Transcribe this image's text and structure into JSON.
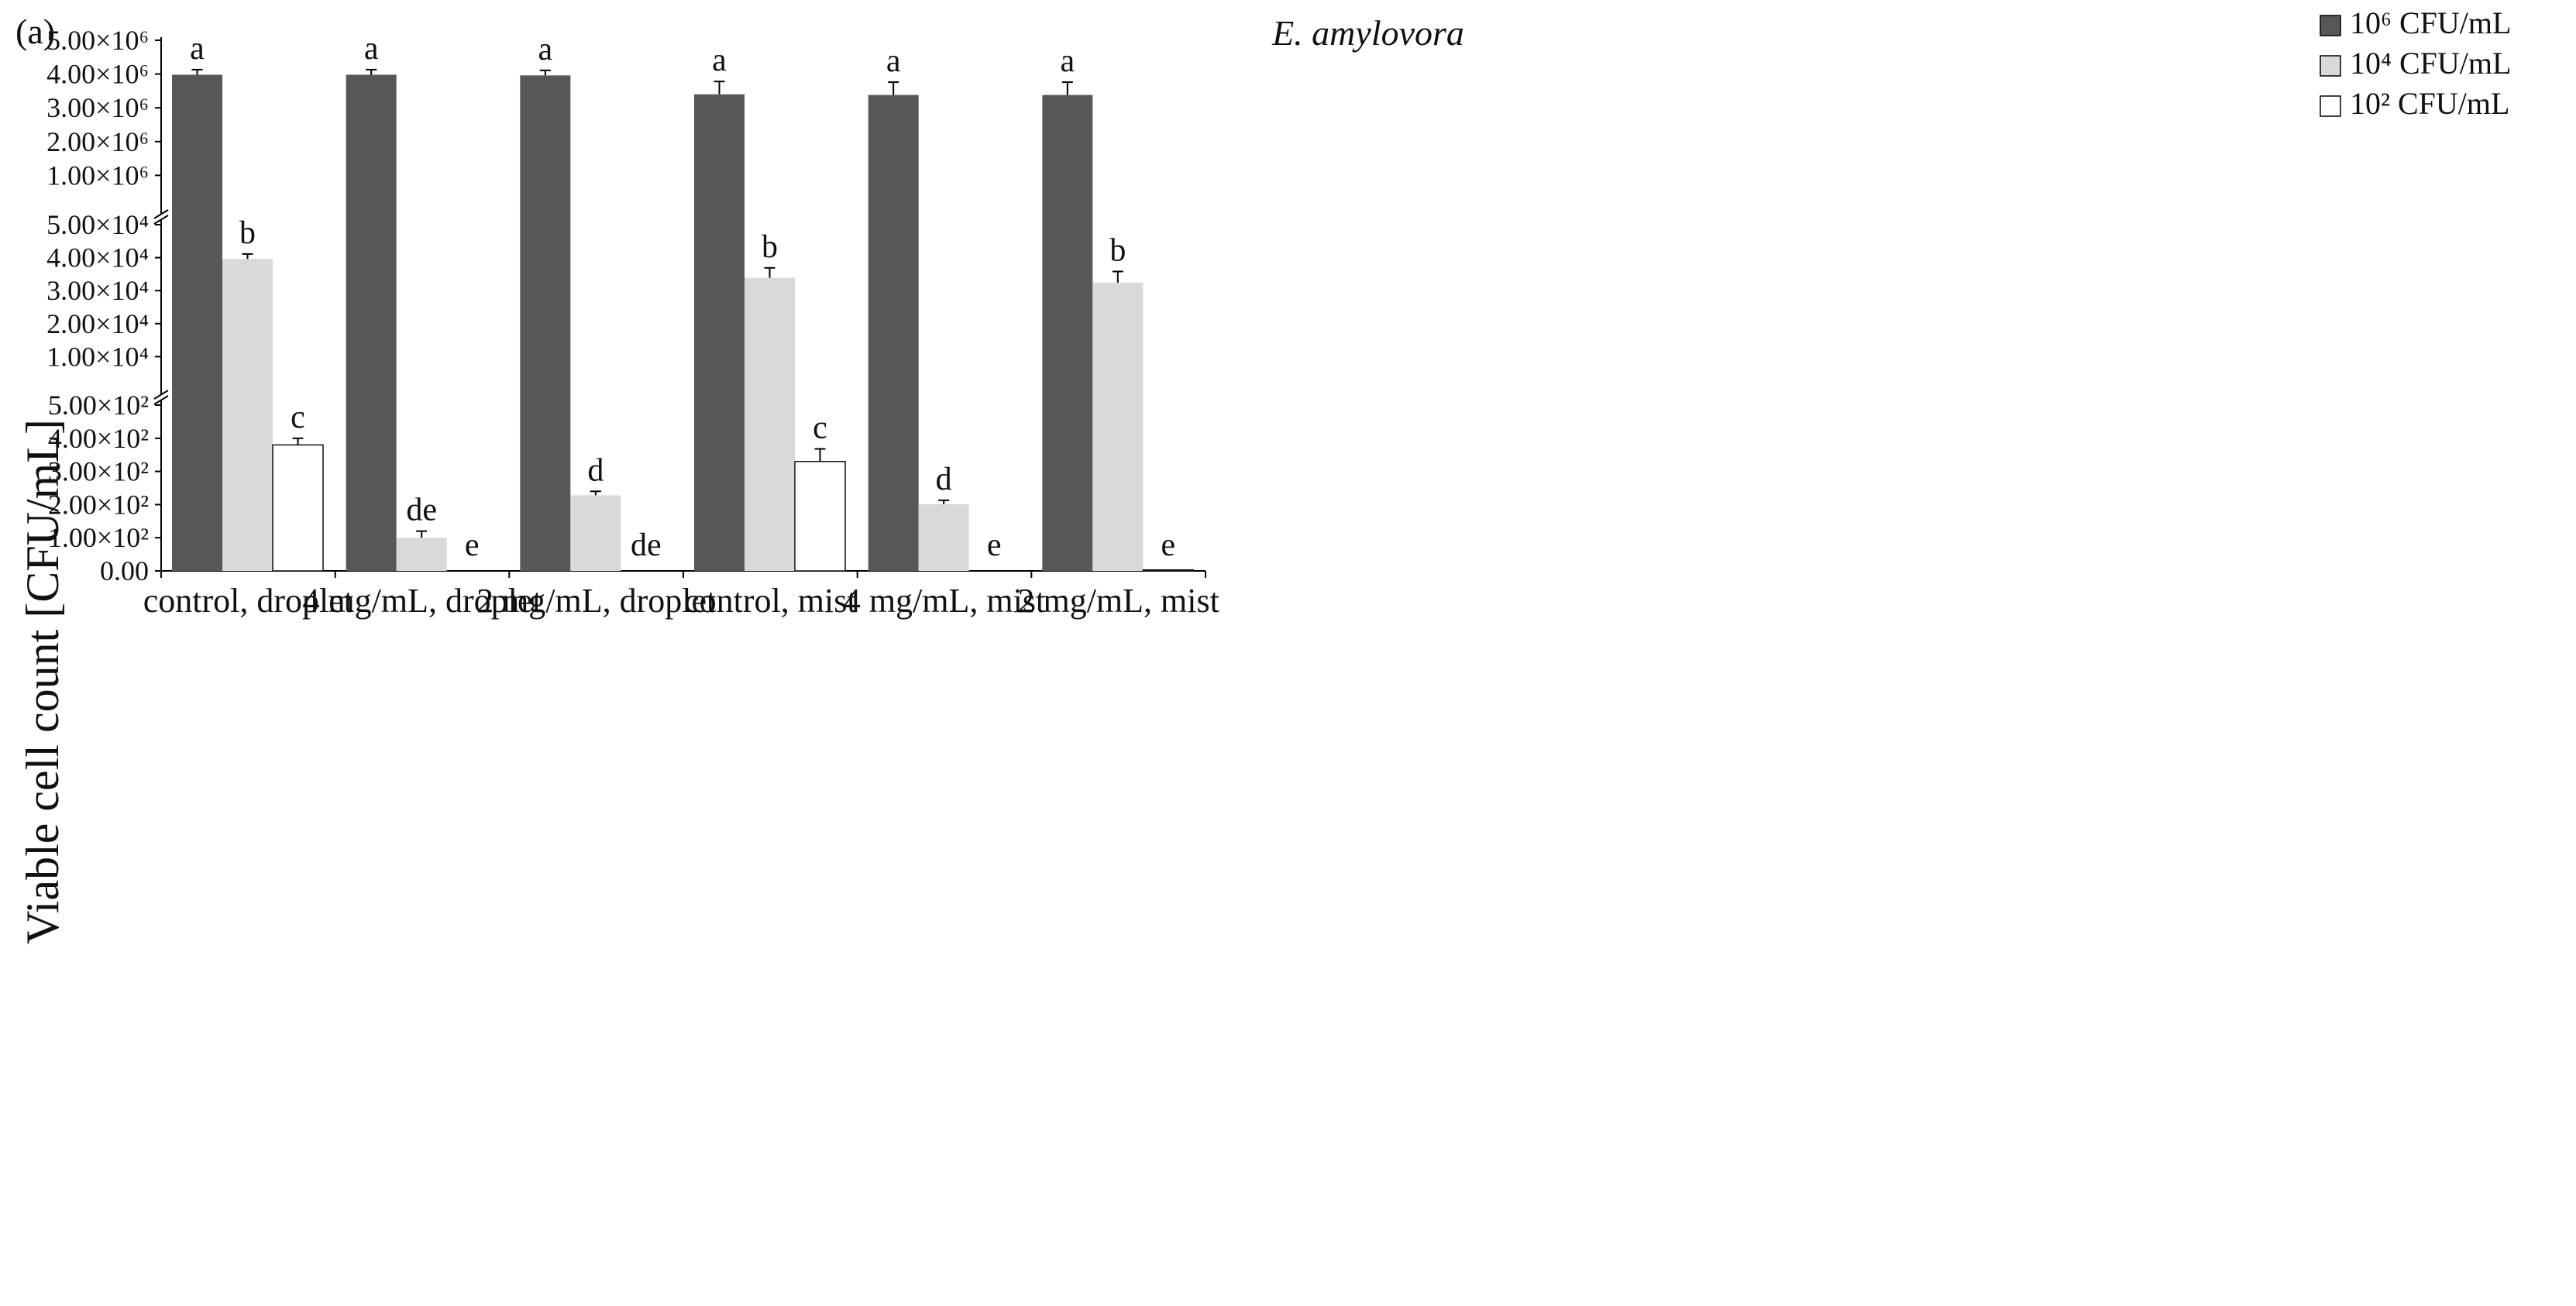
{
  "panel_label": "(a)",
  "colors": {
    "series1": "#575757",
    "series2": "#d9d9d9",
    "series3": "#ffffff",
    "stroke": "#111111"
  },
  "chart_data": {
    "type": "bar",
    "title": "E. amylovora",
    "xlabel": "",
    "ylabel": "Viable cell count [CFU/mL]",
    "broken_axis": true,
    "segments": [
      {
        "name": "low",
        "range": [
          0,
          500
        ],
        "tick_values": [
          0,
          100,
          200,
          300,
          400,
          500
        ],
        "tick_labels": [
          "0.00",
          "1.00×10²",
          "2.00×10²",
          "3.00×10²",
          "4.00×10²",
          "5.00×10²"
        ]
      },
      {
        "name": "mid",
        "range": [
          0,
          50000
        ],
        "tick_values": [
          10000,
          20000,
          30000,
          40000,
          50000
        ],
        "tick_labels": [
          "1.00×10⁴",
          "2.00×10⁴",
          "3.00×10⁴",
          "4.00×10⁴",
          "5.00×10⁴"
        ]
      },
      {
        "name": "high",
        "range": [
          0,
          5000000
        ],
        "tick_values": [
          1000000,
          2000000,
          3000000,
          4000000,
          5000000
        ],
        "tick_labels": [
          "1.00×10⁶",
          "2.00×10⁶",
          "3.00×10⁶",
          "4.00×10⁶",
          "5.00×10⁶"
        ]
      }
    ],
    "categories": [
      "control, droplet",
      "4 mg/mL, droplet",
      "2 mg/mL, droplet",
      "control, mist",
      "4 mg/mL, mist",
      "2 mg/mL, mist"
    ],
    "series": [
      {
        "name": "10⁶ CFU/mL",
        "segment": "high",
        "values": [
          3980000,
          3980000,
          3960000,
          3400000,
          3380000,
          3380000
        ],
        "errors": [
          150000,
          150000,
          150000,
          380000,
          380000,
          380000
        ],
        "letters": [
          "a",
          "a",
          "a",
          "a",
          "a",
          "a"
        ]
      },
      {
        "name": "10⁴ CFU/mL",
        "segment": "mid",
        "values": [
          39600,
          100,
          228,
          33900,
          201,
          32400
        ],
        "errors": [
          1500,
          20,
          12,
          3000,
          12,
          3400
        ],
        "value_segments": [
          "mid",
          "low",
          "low",
          "mid",
          "low",
          "mid"
        ],
        "letters": [
          "b",
          "de",
          "d",
          "b",
          "d",
          "b"
        ]
      },
      {
        "name": "10² CFU/mL",
        "segment": "low",
        "values": [
          380,
          0,
          0,
          330,
          0,
          3
        ],
        "errors": [
          20,
          0,
          0,
          38,
          0,
          0
        ],
        "letters": [
          "c",
          "e",
          "de",
          "c",
          "e",
          "e"
        ]
      }
    ],
    "legend": {
      "position": "top-right",
      "entries": [
        "10⁶ CFU/mL",
        "10⁴ CFU/mL",
        "10² CFU/mL"
      ]
    },
    "grid": false
  }
}
